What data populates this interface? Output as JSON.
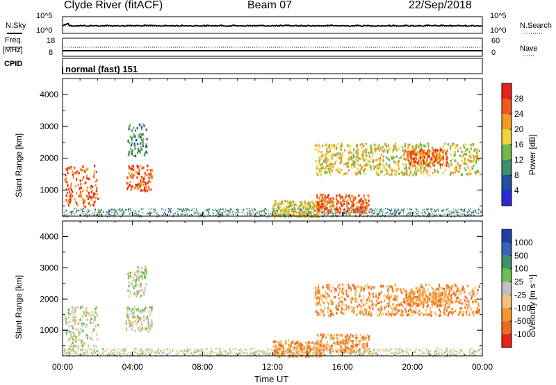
{
  "header": {
    "station": "Clyde River (fitACF)",
    "beam": "Beam 07",
    "date": "22/Sep/2018"
  },
  "top_panels": {
    "nsky_label": "N.Sky",
    "nsky_ticks": [
      "10^5",
      "10^0"
    ],
    "nsearch_label": "N.Search",
    "nsearch_ticks": [
      "10^5",
      "10^0"
    ],
    "freq_label": "Freq.",
    "freq_unit": "[MHz]",
    "freq_ticks": [
      "18",
      "8"
    ],
    "nave_label": "Nave",
    "nave_ticks": [
      "60",
      "0"
    ],
    "cpid_label": "CPID",
    "cpid_value": "normal (fast) 151"
  },
  "chart_data": [
    {
      "type": "heatmap",
      "name": "power",
      "ylabel": "Slant Range [km]",
      "yticks": [
        "4000",
        "3000",
        "2000",
        "1000"
      ],
      "ylim": [
        180,
        4500
      ],
      "xlim": [
        0,
        24
      ],
      "colorbar": {
        "label": "Power [dB]",
        "ticks": [
          "28",
          "24",
          "20",
          "16",
          "12",
          "8",
          "4"
        ],
        "colors": [
          "#e8201a",
          "#f05a1c",
          "#f59a20",
          "#f2d23a",
          "#6fb84e",
          "#3f8f6a",
          "#234fa0",
          "#2a2ad6"
        ]
      },
      "echo_regions": [
        {
          "t": [
            0.1,
            2.0
          ],
          "range": [
            500,
            1800
          ],
          "level": "high"
        },
        {
          "t": [
            3.6,
            5.1
          ],
          "range": [
            1000,
            1800
          ],
          "level": "high"
        },
        {
          "t": [
            3.7,
            4.8
          ],
          "range": [
            2100,
            3100
          ],
          "level": "low"
        },
        {
          "t": [
            12.0,
            14.8
          ],
          "range": [
            180,
            700
          ],
          "level": "mid"
        },
        {
          "t": [
            14.5,
            17.5
          ],
          "range": [
            300,
            900
          ],
          "level": "high"
        },
        {
          "t": [
            14.4,
            23.8
          ],
          "range": [
            1500,
            2500
          ],
          "level": "mid"
        },
        {
          "t": [
            19.5,
            22.0
          ],
          "range": [
            1800,
            2300
          ],
          "level": "high"
        }
      ]
    },
    {
      "type": "heatmap",
      "name": "velocity",
      "ylabel": "Slant Range [km]",
      "yticks": [
        "4000",
        "3000",
        "2000",
        "1000"
      ],
      "ylim": [
        180,
        4500
      ],
      "xlim": [
        0,
        24
      ],
      "colorbar": {
        "label": "Velocity [m s⁻¹]",
        "ticks": [
          "1000",
          "500",
          "100",
          "25",
          "-25",
          "-100",
          "-500",
          "-1000"
        ],
        "colors": [
          "#1f3fa8",
          "#3468b5",
          "#3f8f6a",
          "#67c24d",
          "#c0c0c0",
          "#f5c07a",
          "#f5962a",
          "#f06a1e",
          "#e8201a"
        ]
      }
    }
  ],
  "xaxis": {
    "ticks": [
      "00:00",
      "04:00",
      "08:00",
      "12:00",
      "16:00",
      "20:00",
      "00:00"
    ],
    "label": "Time UT"
  }
}
